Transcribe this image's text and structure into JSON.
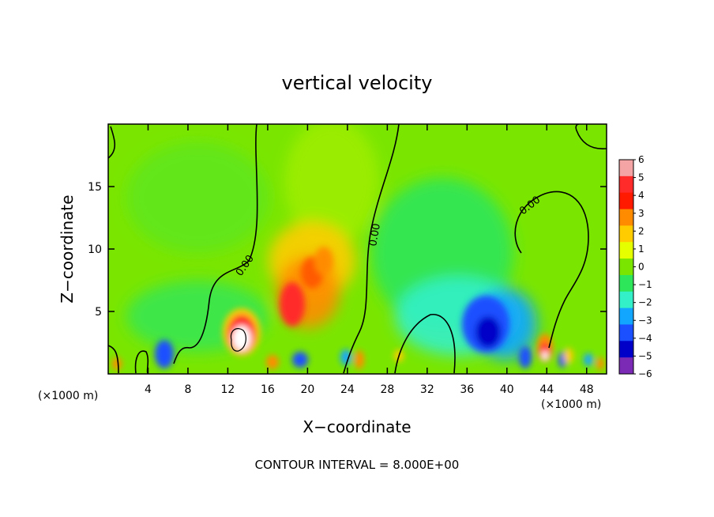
{
  "chart_data": {
    "type": "heatmap",
    "title": "vertical velocity",
    "xlabel": "X−coordinate",
    "ylabel": "Z−coordinate",
    "x_unit_left": "(×1000 m)",
    "x_unit_right": "(×1000 m)",
    "xlim": [
      0,
      50
    ],
    "ylim": [
      0,
      20
    ],
    "x_ticks": [
      4,
      8,
      12,
      16,
      20,
      24,
      28,
      32,
      36,
      40,
      44,
      48
    ],
    "y_ticks": [
      5,
      10,
      15
    ],
    "colorbar": {
      "levels": [
        6,
        5,
        4,
        3,
        2,
        1,
        0,
        -1,
        -2,
        -3,
        -4,
        -5,
        -6
      ],
      "labels": [
        "6",
        "5",
        "4",
        "3",
        "2",
        "1",
        "0",
        "−1",
        "−2",
        "−3",
        "−4",
        "−5",
        "−6"
      ],
      "colors": [
        "#f4a4a4",
        "#ff2a2a",
        "#ff1a00",
        "#ff8c00",
        "#ffcc00",
        "#e6ff00",
        "#7ae600",
        "#2ee65a",
        "#33f0c8",
        "#12a6ff",
        "#1a50ff",
        "#0000c8",
        "#7a2ab4"
      ]
    },
    "contour_labels": [
      "0.00",
      "0.00",
      "0.00"
    ],
    "contour_interval_text": "CONTOUR INTERVAL = 8.000E+00",
    "features": [
      {
        "x": 13.5,
        "z": 2.5,
        "value": 7.5
      },
      {
        "x": 19,
        "z": 6,
        "value": 4.5
      },
      {
        "x": 20.5,
        "z": 8,
        "value": 3.5
      },
      {
        "x": 22,
        "z": 9.5,
        "value": 3
      },
      {
        "x": 44,
        "z": 1.8,
        "value": 4.8
      },
      {
        "x": 38,
        "z": 3.2,
        "value": -4.8
      },
      {
        "x": 6,
        "z": 1.5,
        "value": -3.8
      },
      {
        "x": 19,
        "z": 1.2,
        "value": -3.5
      },
      {
        "x": 42,
        "z": 1.3,
        "value": -4
      },
      {
        "x": 1,
        "z": 0.8,
        "value": 3.2
      },
      {
        "x": 25,
        "z": 1.2,
        "value": 3.2
      },
      {
        "x": 36,
        "z": 7.5,
        "value": -1.5
      },
      {
        "x": 22,
        "z": 14,
        "value": 1.5
      },
      {
        "x": 12,
        "z": 15,
        "value": 0.6
      }
    ]
  }
}
